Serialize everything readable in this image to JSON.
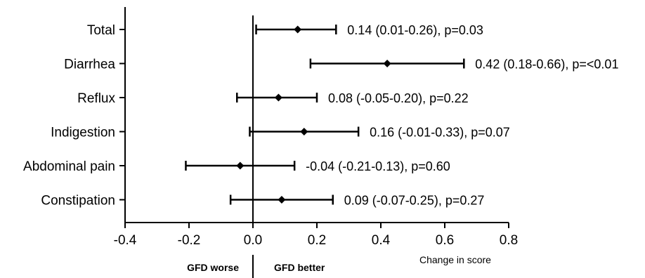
{
  "chart_data": {
    "type": "forest",
    "categories": [
      "Total",
      "Diarrhea",
      "Reflux",
      "Indigestion",
      "Abdominal pain",
      "Constipation"
    ],
    "estimates": [
      0.14,
      0.42,
      0.08,
      0.16,
      -0.04,
      0.09
    ],
    "lower": [
      0.01,
      0.18,
      -0.05,
      -0.01,
      -0.21,
      -0.07
    ],
    "upper": [
      0.26,
      0.66,
      0.2,
      0.33,
      0.13,
      0.25
    ],
    "annotations": [
      "0.14 (0.01-0.26), p=0.03",
      "0.42 (0.18-0.66), p=<0.01",
      "0.08 (-0.05-0.20), p=0.22",
      "0.16 (-0.01-0.33), p=0.07",
      "-0.04 (-0.21-0.13), p=0.60",
      "0.09 (-0.07-0.25), p=0.27"
    ],
    "x_ticks": [
      "-0.4",
      "-0.2",
      "0.0",
      "0.2",
      "0.4",
      "0.6",
      "0.8"
    ],
    "x_tick_values": [
      -0.4,
      -0.2,
      0.0,
      0.2,
      0.4,
      0.6,
      0.8
    ],
    "xlim": [
      -0.4,
      0.8
    ],
    "xlabel": "Change in score",
    "left_direction_label": "GFD worse",
    "right_direction_label": "GFD better",
    "reference_line": 0.0,
    "grid": false
  }
}
